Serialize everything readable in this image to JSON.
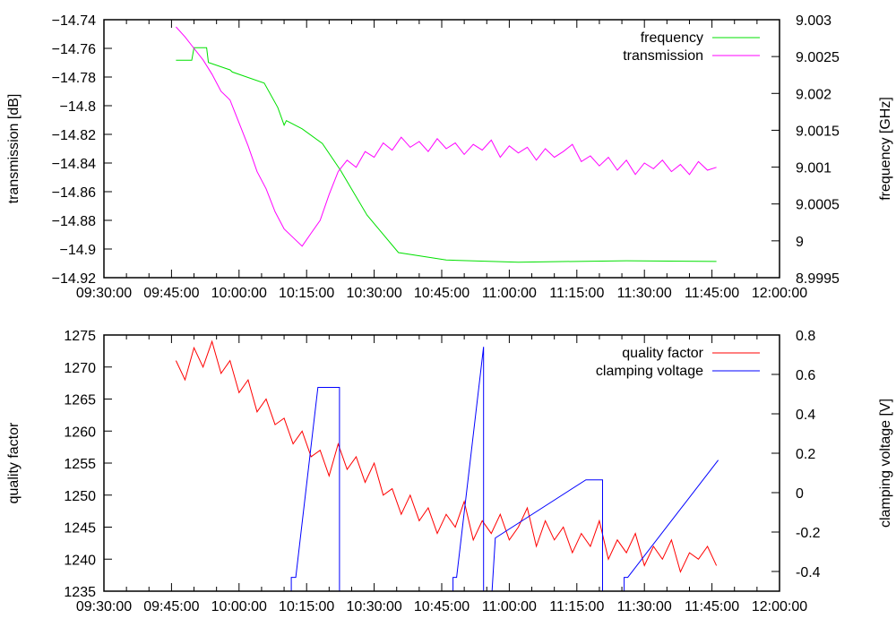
{
  "chart_data": [
    {
      "type": "line",
      "x_origin": "09:30:00",
      "x_unit": "minutes since 09:30:00",
      "xlim": [
        0,
        150
      ],
      "x_ticks": [
        "09:30:00",
        "09:45:00",
        "10:00:00",
        "10:15:00",
        "10:30:00",
        "10:45:00",
        "11:00:00",
        "11:15:00",
        "11:30:00",
        "11:45:00",
        "12:00:00"
      ],
      "ylabel": "transmission [dB]",
      "ylim": [
        -14.92,
        -14.74
      ],
      "y_ticks": [
        "-14.74",
        "-14.76",
        "-14.78",
        "-14.8",
        "-14.82",
        "-14.84",
        "-14.86",
        "-14.88",
        "-14.9",
        "-14.92"
      ],
      "y2label": "frequency [GHz]",
      "y2lim": [
        8.9995,
        9.003
      ],
      "y2_ticks": [
        "9.003",
        "9.0025",
        "9.002",
        "9.0015",
        "9.001",
        "9.0005",
        "9",
        "8.9995"
      ],
      "legend": "top-right",
      "series": [
        {
          "name": "frequency",
          "axis": "y2",
          "color": "#00e000",
          "points": [
            [
              16,
              9.00245
            ],
            [
              19.5,
              9.00245
            ],
            [
              20,
              9.00262
            ],
            [
              22.8,
              9.00262
            ],
            [
              23.2,
              9.00242
            ],
            [
              28,
              9.00232
            ],
            [
              28.5,
              9.00229
            ],
            [
              35.6,
              9.00214
            ],
            [
              38.6,
              9.00181
            ],
            [
              40,
              9.00157
            ],
            [
              40.5,
              9.00163
            ],
            [
              44,
              9.00152
            ],
            [
              48.5,
              9.00132
            ],
            [
              52.5,
              9.00096
            ],
            [
              58.4,
              9.00035
            ],
            [
              65.4,
              8.99984
            ],
            [
              76,
              8.99974
            ],
            [
              92,
              8.99971
            ],
            [
              116,
              8.99973
            ],
            [
              136,
              8.99972
            ]
          ]
        },
        {
          "name": "transmission",
          "axis": "y",
          "color": "#ff00ff",
          "t_start": 16,
          "t_step": 2,
          "values": [
            -14.745,
            -14.752,
            -14.76,
            -14.768,
            -14.778,
            -14.79,
            -14.796,
            -14.812,
            -14.828,
            -14.846,
            -14.858,
            -14.874,
            -14.886,
            -14.892,
            -14.898,
            -14.889,
            -14.88,
            -14.862,
            -14.846,
            -14.838,
            -14.843,
            -14.832,
            -14.836,
            -14.826,
            -14.831,
            -14.822,
            -14.829,
            -14.825,
            -14.832,
            -14.823,
            -14.83,
            -14.826,
            -14.834,
            -14.827,
            -14.831,
            -14.824,
            -14.836,
            -14.828,
            -14.833,
            -14.829,
            -14.838,
            -14.83,
            -14.836,
            -14.832,
            -14.827,
            -14.839,
            -14.835,
            -14.842,
            -14.836,
            -14.845,
            -14.838,
            -14.848,
            -14.84,
            -14.844,
            -14.838,
            -14.846,
            -14.841,
            -14.848,
            -14.839,
            -14.845,
            -14.843
          ]
        }
      ]
    },
    {
      "type": "line",
      "x_origin": "09:30:00",
      "x_unit": "minutes since 09:30:00",
      "xlim": [
        0,
        150
      ],
      "x_ticks": [
        "09:30:00",
        "09:45:00",
        "10:00:00",
        "10:15:00",
        "10:30:00",
        "10:45:00",
        "11:00:00",
        "11:15:00",
        "11:30:00",
        "11:45:00",
        "12:00:00"
      ],
      "ylabel": "quality factor",
      "ylim": [
        1235,
        1275
      ],
      "y_ticks": [
        "1275",
        "1270",
        "1265",
        "1260",
        "1255",
        "1250",
        "1245",
        "1240",
        "1235"
      ],
      "y2label": "clamping voltage [V]",
      "y2lim": [
        -0.5,
        0.8
      ],
      "y2_ticks": [
        "0.8",
        "0.6",
        "0.4",
        "0.2",
        "0",
        "-0.2",
        "-0.4"
      ],
      "legend": "top-right",
      "series": [
        {
          "name": "quality factor",
          "axis": "y",
          "color": "#ff0000",
          "t_start": 16,
          "t_step": 2,
          "values": [
            1271,
            1268,
            1273,
            1270,
            1274,
            1269,
            1271,
            1266,
            1268,
            1263,
            1265,
            1261,
            1262,
            1258,
            1260,
            1256,
            1257,
            1253,
            1258,
            1254,
            1256,
            1252,
            1255,
            1250,
            1251,
            1247,
            1250,
            1246,
            1248,
            1244,
            1247,
            1245,
            1249,
            1243,
            1246,
            1244,
            1247,
            1243,
            1245,
            1248,
            1242,
            1246,
            1243,
            1245,
            1241,
            1244,
            1242,
            1246,
            1240,
            1243,
            1241,
            1244,
            1239,
            1242,
            1240,
            1243,
            1238,
            1241,
            1240,
            1242,
            1239
          ]
        },
        {
          "name": "clamping voltage",
          "axis": "y2",
          "color": "#0000ff",
          "points": [
            [
              41.6,
              -0.6
            ],
            [
              41.6,
              -0.43
            ],
            [
              42.6,
              -0.43
            ],
            [
              47.5,
              0.534
            ],
            [
              52.3,
              0.534
            ],
            [
              52.3,
              -0.6
            ],
            null,
            [
              77.5,
              -0.6
            ],
            [
              77.5,
              -0.43
            ],
            [
              78.3,
              -0.43
            ],
            [
              84.3,
              0.74
            ],
            [
              84.3,
              -0.6
            ],
            null,
            [
              85.9,
              -0.6
            ],
            [
              86.9,
              -0.23
            ],
            [
              107,
              0.065
            ],
            [
              110.7,
              0.065
            ],
            [
              110.7,
              -0.6
            ],
            null,
            [
              115.5,
              -0.6
            ],
            [
              115.5,
              -0.43
            ],
            [
              116.3,
              -0.43
            ],
            [
              136.4,
              0.165
            ]
          ]
        }
      ]
    }
  ]
}
